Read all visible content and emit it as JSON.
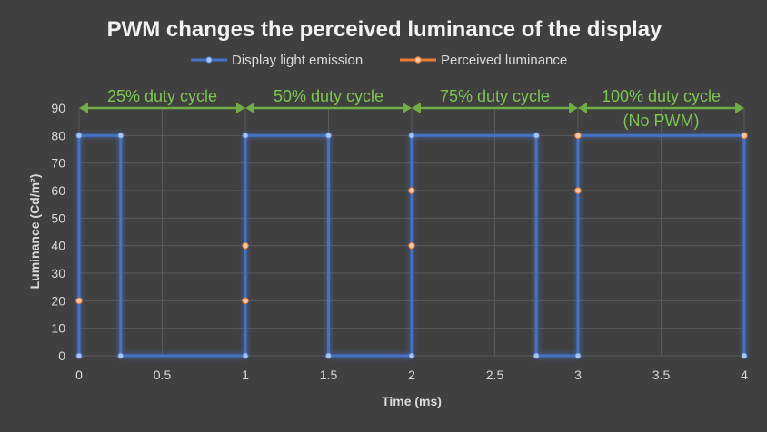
{
  "chart_data": {
    "type": "line",
    "title": "PWM changes the perceived luminance of the display",
    "xlabel": "Time (ms)",
    "ylabel": "Luminance (Cd/m²)",
    "xlim": [
      0,
      4
    ],
    "ylim": [
      0,
      90
    ],
    "x_ticks": [
      "0",
      "0.5",
      "1",
      "1.5",
      "2",
      "2.5",
      "3",
      "3.5",
      "4"
    ],
    "y_ticks": [
      "0",
      "10",
      "20",
      "30",
      "40",
      "50",
      "60",
      "70",
      "80",
      "90"
    ],
    "grid": true,
    "legend_position": "top",
    "series": [
      {
        "name": "Display light emission",
        "color": "#4472c4",
        "points": [
          [
            0,
            0
          ],
          [
            0,
            80
          ],
          [
            0.25,
            80
          ],
          [
            0.25,
            0
          ],
          [
            1,
            0
          ],
          [
            1,
            80
          ],
          [
            1.5,
            80
          ],
          [
            1.5,
            0
          ],
          [
            2,
            0
          ],
          [
            2,
            80
          ],
          [
            2.75,
            80
          ],
          [
            2.75,
            0
          ],
          [
            3,
            0
          ],
          [
            3,
            80
          ],
          [
            4,
            80
          ],
          [
            4,
            0
          ]
        ],
        "markers": [
          [
            0,
            0
          ],
          [
            0,
            80
          ],
          [
            0.25,
            80
          ],
          [
            0.25,
            0
          ],
          [
            1,
            0
          ],
          [
            1,
            80
          ],
          [
            1.5,
            80
          ],
          [
            1.5,
            0
          ],
          [
            2,
            0
          ],
          [
            2,
            80
          ],
          [
            2.75,
            80
          ],
          [
            2.75,
            0
          ],
          [
            3,
            0
          ],
          [
            4,
            0
          ]
        ]
      },
      {
        "name": "Perceived luminance",
        "color": "#ed7d31",
        "segments": [
          [
            [
              0,
              20
            ],
            [
              1,
              20
            ]
          ],
          [
            [
              1,
              40
            ],
            [
              2,
              40
            ]
          ],
          [
            [
              2,
              60
            ],
            [
              3,
              60
            ]
          ],
          [
            [
              3,
              80
            ],
            [
              4,
              80
            ]
          ]
        ]
      }
    ],
    "annotations": [
      {
        "x_start": 0,
        "x_end": 1,
        "y": 90,
        "lines": [
          "25% duty cycle"
        ]
      },
      {
        "x_start": 1,
        "x_end": 2,
        "y": 90,
        "lines": [
          "50% duty cycle"
        ]
      },
      {
        "x_start": 2,
        "x_end": 3,
        "y": 90,
        "lines": [
          "75% duty cycle"
        ]
      },
      {
        "x_start": 3,
        "x_end": 4,
        "y": 90,
        "lines": [
          "100% duty cycle",
          "(No PWM)"
        ]
      }
    ],
    "annotation_color": "#70ad47"
  }
}
